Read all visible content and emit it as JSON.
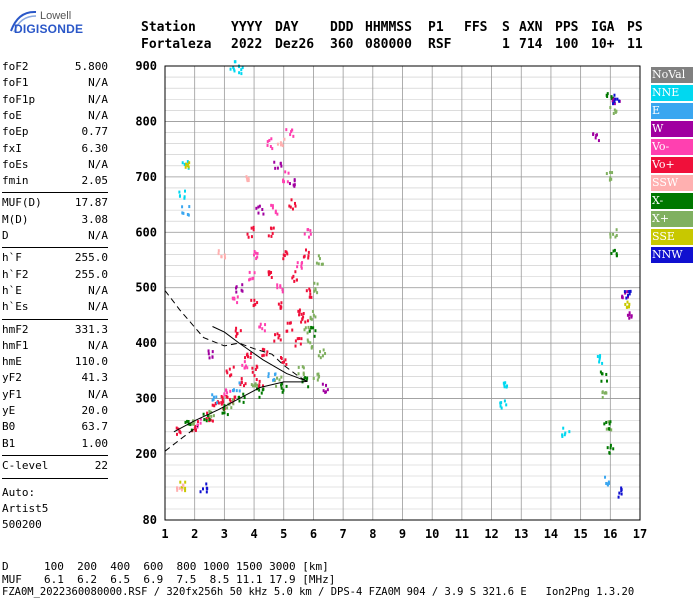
{
  "logo": {
    "top": "Lowell",
    "bottom": "DIGISONDE"
  },
  "header": {
    "labels": [
      "Station",
      "YYYY",
      "DAY",
      "DDD",
      "HHMMSS",
      "P1",
      "FFS",
      "S",
      "AXN",
      "PPS",
      "IGA",
      "PS"
    ],
    "values": [
      "Fortaleza",
      "2022",
      "Dez26",
      "360",
      "080000",
      "RSF",
      "1",
      "714",
      "100",
      "10+",
      "11"
    ]
  },
  "params": [
    {
      "name": "foF2",
      "value": "5.800"
    },
    {
      "name": "foF1",
      "value": "N/A"
    },
    {
      "name": "foF1p",
      "value": "N/A"
    },
    {
      "name": "foE",
      "value": "N/A"
    },
    {
      "name": "foEp",
      "value": "0.77"
    },
    {
      "name": "fxI",
      "value": "6.30"
    },
    {
      "name": "foEs",
      "value": "N/A"
    },
    {
      "name": "fmin",
      "value": "2.05"
    },
    {
      "name": "MUF(D)",
      "value": "17.87"
    },
    {
      "name": "M(D)",
      "value": "3.08"
    },
    {
      "name": "D",
      "value": "N/A"
    },
    {
      "name": "h`F",
      "value": "255.0"
    },
    {
      "name": "h`F2",
      "value": "255.0"
    },
    {
      "name": "h`E",
      "value": "N/A"
    },
    {
      "name": "h`Es",
      "value": "N/A"
    },
    {
      "name": "hmF2",
      "value": "331.3"
    },
    {
      "name": "hmF1",
      "value": "N/A"
    },
    {
      "name": "hmE",
      "value": "110.0"
    },
    {
      "name": "yF2",
      "value": "41.3"
    },
    {
      "name": "yF1",
      "value": "N/A"
    },
    {
      "name": "yE",
      "value": "20.0"
    },
    {
      "name": "B0",
      "value": "63.7"
    },
    {
      "name": "B1",
      "value": "1.00"
    },
    {
      "name": "C-level",
      "value": "22"
    }
  ],
  "auto": {
    "line1": "Auto:",
    "line2": "Artist5",
    "line3": "500200"
  },
  "legend": [
    {
      "label": "NoVal",
      "color": "#808080"
    },
    {
      "label": "NNE",
      "color": "#00d8f0"
    },
    {
      "label": "E",
      "color": "#3aa6f0"
    },
    {
      "label": "W",
      "color": "#a000a0"
    },
    {
      "label": "Vo-",
      "color": "#ff40b0"
    },
    {
      "label": "Vo+",
      "color": "#f0103a"
    },
    {
      "label": "SSW",
      "color": "#ffb0b0"
    },
    {
      "label": "X-",
      "color": "#007800"
    },
    {
      "label": "X+",
      "color": "#80b060"
    },
    {
      "label": "SSE",
      "color": "#c8c800"
    },
    {
      "label": "NNW",
      "color": "#1010d0"
    }
  ],
  "footer": {
    "d_label": "D",
    "d_values": "100  200  400  600  800 1000 1500 3000 [km]",
    "muf_label": "MUF",
    "muf_values": "6.1  6.2  6.5  6.9  7.5  8.5 11.1 17.9 [MHz]",
    "file_line": "FZA0M_2022360080000.RSF / 320fx256h 50 kHz 5.0 km / DPS-4 FZA0M 904 / 3.9 S 321.6 E   Ion2Png 1.3.20"
  },
  "chart_data": {
    "type": "scatter",
    "xlim": [
      1,
      17
    ],
    "ylim": [
      80,
      900
    ],
    "x_ticks": [
      1,
      2,
      3,
      4,
      5,
      6,
      7,
      8,
      9,
      10,
      11,
      12,
      13,
      14,
      15,
      16,
      17
    ],
    "y_ticks": [
      80,
      200,
      300,
      400,
      500,
      600,
      700,
      800,
      900
    ],
    "grid": true,
    "legend_position": "right",
    "series": [
      {
        "name": "Vo+",
        "color": "#f0103a",
        "points": [
          [
            1.5,
            240
          ],
          [
            2,
            250
          ],
          [
            2.5,
            265
          ],
          [
            3,
            285
          ],
          [
            3.3,
            300
          ],
          [
            3.6,
            330
          ],
          [
            4,
            350
          ],
          [
            4.4,
            380
          ],
          [
            4.8,
            410
          ],
          [
            5.2,
            430
          ],
          [
            5.6,
            460
          ],
          [
            5.9,
            490
          ],
          [
            3.5,
            420
          ],
          [
            4,
            470
          ],
          [
            4.5,
            520
          ],
          [
            5,
            560
          ],
          [
            5.4,
            520
          ],
          [
            5.7,
            440
          ],
          [
            3.8,
            380
          ],
          [
            4.2,
            330
          ],
          [
            5,
            370
          ],
          [
            5.5,
            400
          ],
          [
            3,
            300
          ],
          [
            2.7,
            290
          ],
          [
            4.6,
            600
          ],
          [
            5.3,
            650
          ],
          [
            4.9,
            470
          ],
          [
            3.2,
            350
          ],
          [
            3.9,
            600
          ],
          [
            5.8,
            560
          ]
        ]
      },
      {
        "name": "Vo-",
        "color": "#ff40b0",
        "points": [
          [
            2.2,
            255
          ],
          [
            3.1,
            310
          ],
          [
            3.7,
            360
          ],
          [
            4.3,
            430
          ],
          [
            4.9,
            500
          ],
          [
            5.5,
            540
          ],
          [
            4.1,
            560
          ],
          [
            4.7,
            640
          ],
          [
            5.1,
            700
          ],
          [
            3.4,
            480
          ],
          [
            5.8,
            600
          ],
          [
            3.9,
            520
          ],
          [
            4.5,
            760
          ],
          [
            5.2,
            780
          ]
        ]
      },
      {
        "name": "X+",
        "color": "#80b060",
        "points": [
          [
            2,
            260
          ],
          [
            2.6,
            275
          ],
          [
            3.2,
            290
          ],
          [
            4,
            320
          ],
          [
            4.8,
            330
          ],
          [
            5.6,
            350
          ],
          [
            5.9,
            400
          ],
          [
            6,
            450
          ],
          [
            6.1,
            500
          ],
          [
            6.2,
            550
          ],
          [
            5.8,
            420
          ],
          [
            6.3,
            380
          ],
          [
            6.1,
            340
          ],
          [
            16.1,
            820
          ],
          [
            16,
            700
          ],
          [
            16.1,
            600
          ],
          [
            15.8,
            310
          ],
          [
            16,
            250
          ]
        ]
      },
      {
        "name": "X-",
        "color": "#007800",
        "points": [
          [
            1.8,
            250
          ],
          [
            2.4,
            265
          ],
          [
            3,
            280
          ],
          [
            3.6,
            300
          ],
          [
            4.2,
            310
          ],
          [
            5,
            320
          ],
          [
            5.7,
            330
          ],
          [
            6,
            420
          ],
          [
            16,
            850
          ],
          [
            16.1,
            560
          ],
          [
            15.8,
            340
          ],
          [
            15.9,
            250
          ],
          [
            16,
            210
          ]
        ]
      },
      {
        "name": "W",
        "color": "#a000a0",
        "points": [
          [
            3.5,
            500
          ],
          [
            4.2,
            640
          ],
          [
            4.8,
            720
          ],
          [
            5.3,
            690
          ],
          [
            2.5,
            380
          ],
          [
            6.4,
            320
          ],
          [
            16.2,
            840
          ],
          [
            15.5,
            770
          ],
          [
            16.6,
            450
          ],
          [
            16.5,
            490
          ]
        ]
      },
      {
        "name": "NNE",
        "color": "#00d8f0",
        "points": [
          [
            3.3,
            900
          ],
          [
            3.5,
            895
          ],
          [
            1.7,
            720
          ],
          [
            1.6,
            670
          ],
          [
            12.4,
            320
          ],
          [
            12.4,
            290
          ],
          [
            15.7,
            370
          ],
          [
            14.5,
            240
          ]
        ]
      },
      {
        "name": "E",
        "color": "#3aa6f0",
        "points": [
          [
            2.7,
            300
          ],
          [
            3.4,
            320
          ],
          [
            4.6,
            340
          ],
          [
            1.7,
            640
          ],
          [
            15.9,
            150
          ]
        ]
      },
      {
        "name": "NNW",
        "color": "#1010d0",
        "points": [
          [
            16.6,
            490
          ],
          [
            16.4,
            130
          ],
          [
            2.3,
            140
          ],
          [
            16.2,
            840
          ]
        ]
      },
      {
        "name": "SSE",
        "color": "#c8c800",
        "points": [
          [
            16.6,
            470
          ],
          [
            1.6,
            140
          ],
          [
            1.8,
            720
          ]
        ]
      },
      {
        "name": "SSW",
        "color": "#ffb0b0",
        "points": [
          [
            1.5,
            140
          ],
          [
            3.8,
            700
          ],
          [
            4.9,
            760
          ],
          [
            2.9,
            560
          ]
        ]
      }
    ],
    "profile_line": [
      [
        1.3,
        240
      ],
      [
        2,
        260
      ],
      [
        2.8,
        280
      ],
      [
        3.5,
        300
      ],
      [
        4.2,
        320
      ],
      [
        5,
        330
      ],
      [
        5.6,
        330
      ],
      [
        5.8,
        331
      ],
      [
        5.6,
        335
      ],
      [
        5.1,
        345
      ],
      [
        4.3,
        370
      ],
      [
        3.5,
        400
      ],
      [
        3,
        420
      ],
      [
        2.6,
        430
      ]
    ],
    "dashed_line": [
      [
        1,
        495
      ],
      [
        1.5,
        460
      ],
      [
        2.3,
        410
      ],
      [
        3,
        395
      ],
      [
        3.5,
        400
      ],
      [
        4,
        390
      ],
      [
        4.6,
        380
      ],
      [
        5,
        360
      ],
      [
        5.5,
        340
      ],
      [
        5.8,
        330
      ]
    ],
    "dashed_lower": [
      [
        1,
        205
      ],
      [
        1.6,
        230
      ],
      [
        2.1,
        250
      ]
    ]
  }
}
